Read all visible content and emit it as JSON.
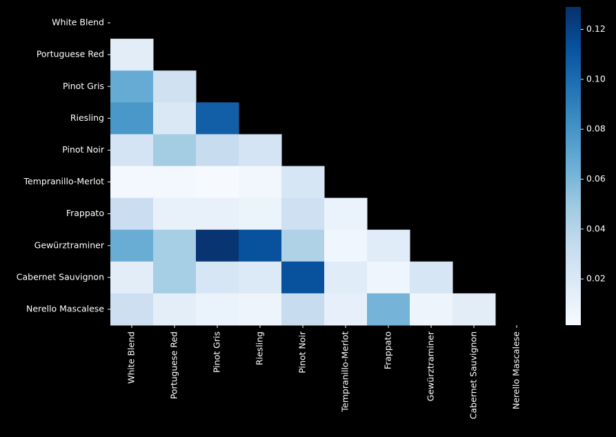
{
  "chart_data": {
    "type": "heatmap",
    "title": "",
    "xlabel": "",
    "ylabel": "",
    "labels": [
      "White Blend",
      "Portuguese Red",
      "Pinot Gris",
      "Riesling",
      "Pinot Noir",
      "Tempranillo-Merlot",
      "Frappato",
      "Gewürztraminer",
      "Cabernet Sauvignon",
      "Nerello Mascalese"
    ],
    "mask": "upper triangle incl. diagonal",
    "values": [
      [
        null,
        null,
        null,
        null,
        null,
        null,
        null,
        null,
        null
      ],
      [
        0.015
      ],
      [
        0.067,
        0.027
      ],
      [
        0.078,
        0.02,
        0.106
      ],
      [
        0.024,
        0.047,
        0.032,
        0.024
      ],
      [
        0.004,
        0.004,
        0.002,
        0.005,
        0.022
      ],
      [
        0.03,
        0.011,
        0.011,
        0.009,
        0.028,
        0.01
      ],
      [
        0.066,
        0.046,
        0.127,
        0.113,
        0.042,
        0.006,
        0.016
      ],
      [
        0.015,
        0.046,
        0.022,
        0.019,
        0.113,
        0.016,
        0.007,
        0.022
      ],
      [
        0.029,
        0.014,
        0.01,
        0.008,
        0.032,
        0.012,
        0.062,
        0.008,
        0.015
      ]
    ],
    "colormap": "Blues",
    "colorbar": {
      "min": 0.0015,
      "max": 0.129,
      "ticks": [
        "0.02",
        "0.04",
        "0.06",
        "0.08",
        "0.10",
        "0.12"
      ]
    },
    "background": "#000000"
  }
}
